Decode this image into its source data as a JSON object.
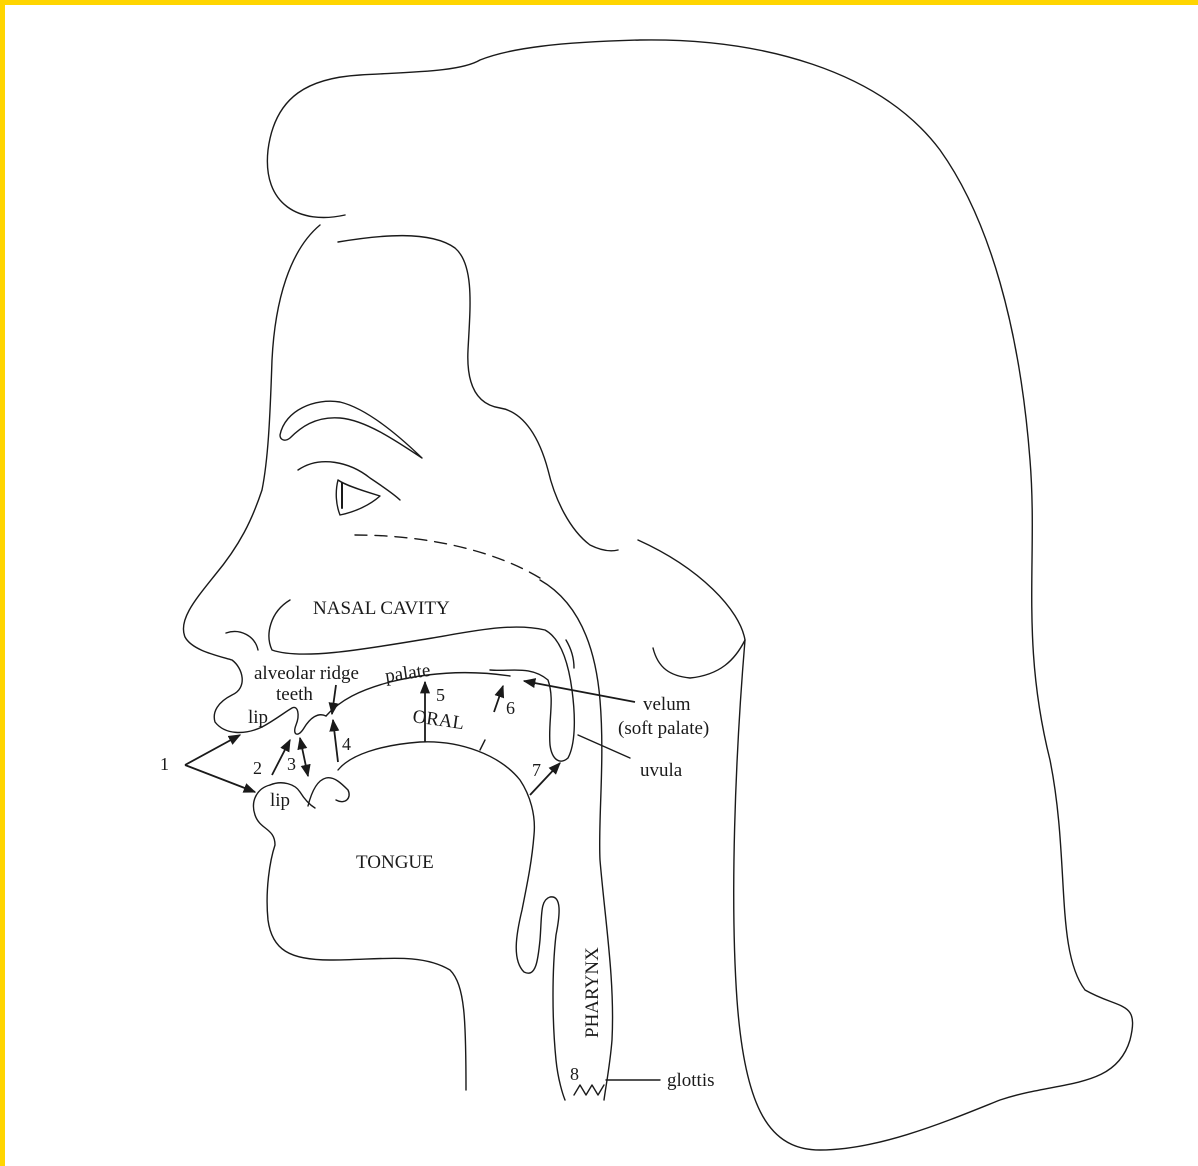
{
  "colors": {
    "border": "#FFD500",
    "ink": "#1a1a1a",
    "background": "#FFFFFF"
  },
  "labels": {
    "nasal_cavity": "NASAL CAVITY",
    "alveolar_ridge": "alveolar ridge",
    "teeth": "teeth",
    "palate": "palate",
    "upper_lip": "lip",
    "lower_lip": "lip",
    "oral": "ORAL",
    "velum": "velum",
    "soft_palate": "(soft palate)",
    "uvula": "uvula",
    "tongue": "TONGUE",
    "pharynx": "PHARYNX",
    "glottis": "glottis"
  },
  "numbers": {
    "n1": "1",
    "n2": "2",
    "n3": "3",
    "n4": "4",
    "n5": "5",
    "n6": "6",
    "n7": "7",
    "n8": "8"
  }
}
